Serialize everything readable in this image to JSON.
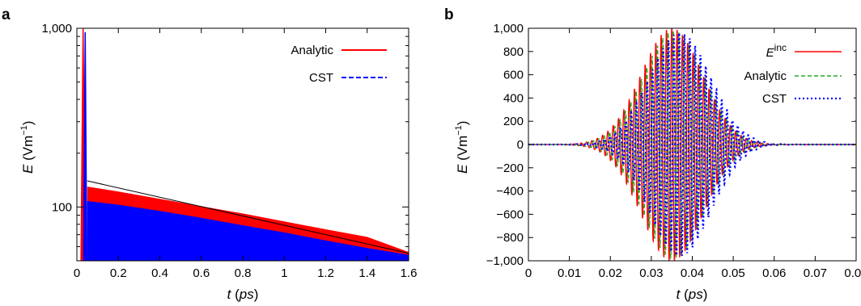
{
  "chart_data": [
    {
      "panel_label": "a",
      "type": "area",
      "scale_y": "log",
      "xlabel": {
        "var": "t",
        "unit": "ps"
      },
      "ylabel": {
        "var": "E",
        "unit": "Vm",
        "exp": "−1"
      },
      "xlim": [
        0,
        1.6
      ],
      "ylim": [
        50,
        1000
      ],
      "x_ticks": [
        0,
        0.2,
        0.4,
        0.6,
        0.8,
        1.0,
        1.2,
        1.4,
        1.6
      ],
      "x_tick_labels": [
        "0",
        "0.2",
        "0.4",
        "0.6",
        "0.8",
        "1",
        "1.2",
        "1.4",
        "1.6"
      ],
      "y_major_ticks": [
        100,
        1000
      ],
      "y_tick_labels": [
        "100",
        "1,000"
      ],
      "y_minor_ticks": [
        60,
        70,
        80,
        90,
        200,
        300,
        400,
        500,
        600,
        700,
        800,
        900
      ],
      "legend_position": "top-right",
      "envelope": {
        "x": [
          0.05,
          1.6
        ],
        "y": [
          140,
          55
        ]
      },
      "series": [
        {
          "name": "Analytic",
          "color": "#ff0000",
          "style": "solid",
          "spike": {
            "x": 0.03,
            "peak": 1000,
            "width": 0.02
          },
          "fill_top": [
            {
              "x": 0.05,
              "y": 130
            },
            {
              "x": 0.2,
              "y": 122
            },
            {
              "x": 0.4,
              "y": 111
            },
            {
              "x": 0.6,
              "y": 101
            },
            {
              "x": 0.8,
              "y": 92
            },
            {
              "x": 1.0,
              "y": 83
            },
            {
              "x": 1.2,
              "y": 75
            },
            {
              "x": 1.4,
              "y": 68
            },
            {
              "x": 1.6,
              "y": 56
            }
          ]
        },
        {
          "name": "CST",
          "color": "#0000ff",
          "style": "dashed",
          "spike": {
            "x": 0.04,
            "peak": 950,
            "width": 0.015
          },
          "fill_top": [
            {
              "x": 0.05,
              "y": 108
            },
            {
              "x": 0.2,
              "y": 103
            },
            {
              "x": 0.4,
              "y": 95
            },
            {
              "x": 0.6,
              "y": 87
            },
            {
              "x": 0.8,
              "y": 79
            },
            {
              "x": 1.0,
              "y": 72
            },
            {
              "x": 1.2,
              "y": 65
            },
            {
              "x": 1.4,
              "y": 59
            },
            {
              "x": 1.6,
              "y": 54
            }
          ]
        }
      ]
    },
    {
      "panel_label": "b",
      "type": "line",
      "xlabel": {
        "var": "t",
        "unit": "ps"
      },
      "ylabel": {
        "var": "E",
        "unit": "Vm",
        "exp": "−1"
      },
      "xlim": [
        0,
        0.08
      ],
      "ylim": [
        -1000,
        1000
      ],
      "x_ticks": [
        0,
        0.01,
        0.02,
        0.03,
        0.04,
        0.05,
        0.06,
        0.07,
        0.08
      ],
      "x_tick_labels": [
        "0",
        "0.01",
        "0.02",
        "0.03",
        "0.04",
        "0.05",
        "0.06",
        "0.07",
        "0.08"
      ],
      "y_ticks": [
        -1000,
        -800,
        -600,
        -400,
        -200,
        0,
        200,
        400,
        600,
        800,
        1000
      ],
      "y_tick_labels": [
        "−1,000",
        "−800",
        "−600",
        "−400",
        "−200",
        "0",
        "200",
        "400",
        "600",
        "800",
        "1,000"
      ],
      "legend_position": "top-right",
      "series": [
        {
          "name": "E",
          "name_sup": "inc",
          "color": "#ff0000",
          "style": "solid",
          "pulse": {
            "center": 0.035,
            "sigma": 0.0075,
            "amplitude": 1000,
            "period": 0.0013,
            "phase": 0
          }
        },
        {
          "name": "Analytic",
          "color": "#22aa22",
          "style": "dashed",
          "pulse": {
            "center": 0.0355,
            "sigma": 0.0075,
            "amplitude": 980,
            "period": 0.0013,
            "phase": 0.5
          }
        },
        {
          "name": "CST",
          "color": "#0000ff",
          "style": "dotted",
          "pulse": {
            "center": 0.037,
            "sigma": 0.0075,
            "amplitude": 960,
            "period": 0.0013,
            "phase": 1.0
          }
        }
      ]
    }
  ]
}
